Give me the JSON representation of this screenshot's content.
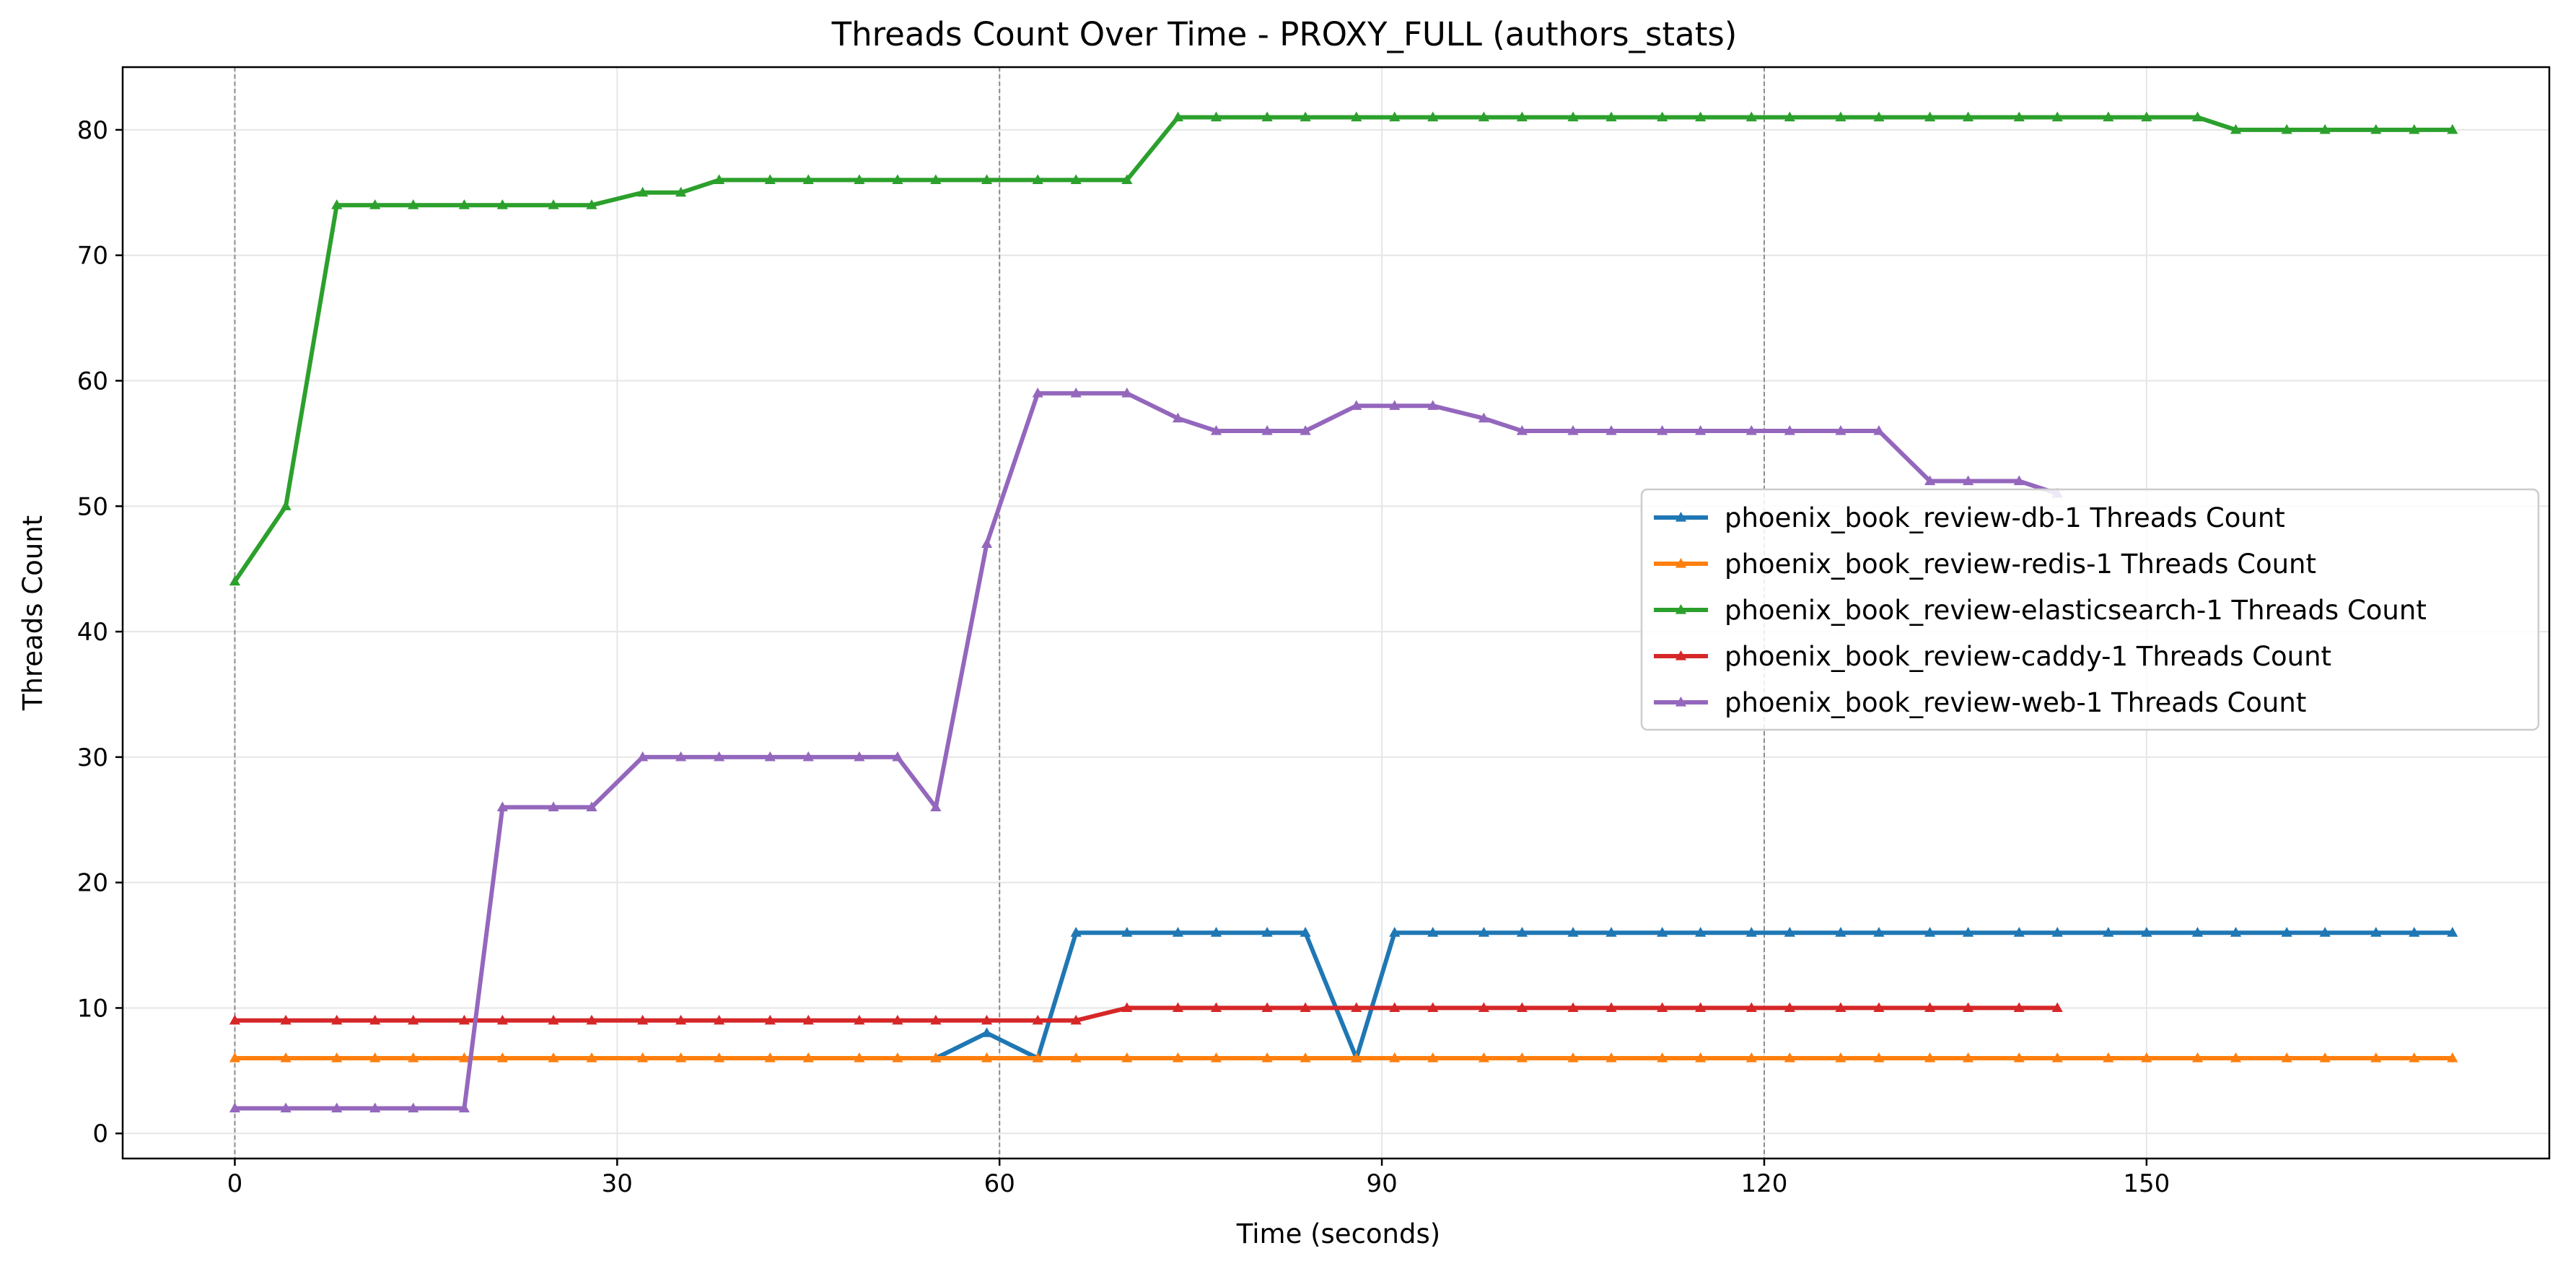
{
  "chart_data": {
    "type": "line",
    "title": "Threads Count Over Time - PROXY_FULL (authors_stats)",
    "xlabel": "Time (seconds)",
    "ylabel": "Threads Count",
    "xlim": [
      -8.8,
      181.6
    ],
    "ylim": [
      -2,
      85
    ],
    "xticks": [
      0,
      30,
      60,
      90,
      120,
      150
    ],
    "yticks": [
      0,
      10,
      20,
      30,
      40,
      50,
      60,
      70,
      80
    ],
    "vlines": [
      0,
      60,
      120
    ],
    "grid": true,
    "legend_position": "center-right",
    "series": [
      {
        "name": "phoenix_book_review-db-1 Threads Count",
        "color": "#1f77b4",
        "x": [
          55,
          59,
          63,
          66,
          70,
          74,
          77,
          81,
          84,
          88,
          91,
          94,
          98,
          101,
          105,
          108,
          112,
          115,
          119,
          122,
          126,
          129,
          133,
          136,
          140,
          143,
          147,
          150,
          154,
          157,
          161,
          164,
          168,
          171,
          174
        ],
        "y": [
          6,
          8,
          6,
          16,
          16,
          16,
          16,
          16,
          16,
          6,
          16,
          16,
          16,
          16,
          16,
          16,
          16,
          16,
          16,
          16,
          16,
          16,
          16,
          16,
          16,
          16,
          16,
          16,
          16,
          16,
          16,
          16,
          16,
          16,
          16
        ]
      },
      {
        "name": "phoenix_book_review-redis-1 Threads Count",
        "color": "#ff7f0e",
        "x": [
          0,
          4,
          8,
          11,
          14,
          18,
          21,
          25,
          28,
          32,
          35,
          38,
          42,
          45,
          49,
          52,
          55,
          59,
          63,
          66,
          70,
          74,
          77,
          81,
          84,
          88,
          91,
          94,
          98,
          101,
          105,
          108,
          112,
          115,
          119,
          122,
          126,
          129,
          133,
          136,
          140,
          143,
          147,
          150,
          154,
          157,
          161,
          164,
          168,
          171,
          174
        ],
        "y": [
          6,
          6,
          6,
          6,
          6,
          6,
          6,
          6,
          6,
          6,
          6,
          6,
          6,
          6,
          6,
          6,
          6,
          6,
          6,
          6,
          6,
          6,
          6,
          6,
          6,
          6,
          6,
          6,
          6,
          6,
          6,
          6,
          6,
          6,
          6,
          6,
          6,
          6,
          6,
          6,
          6,
          6,
          6,
          6,
          6,
          6,
          6,
          6,
          6,
          6,
          6
        ]
      },
      {
        "name": "phoenix_book_review-elasticsearch-1 Threads Count",
        "color": "#2ca02c",
        "x": [
          0,
          4,
          8,
          11,
          14,
          18,
          21,
          25,
          28,
          32,
          35,
          38,
          42,
          45,
          49,
          52,
          55,
          59,
          63,
          66,
          70,
          74,
          77,
          81,
          84,
          88,
          91,
          94,
          98,
          101,
          105,
          108,
          112,
          115,
          119,
          122,
          126,
          129,
          133,
          136,
          140,
          143,
          147,
          150,
          154,
          157,
          161,
          164,
          168,
          171,
          174
        ],
        "y": [
          44,
          50,
          74,
          74,
          74,
          74,
          74,
          74,
          74,
          75,
          75,
          76,
          76,
          76,
          76,
          76,
          76,
          76,
          76,
          76,
          76,
          81,
          81,
          81,
          81,
          81,
          81,
          81,
          81,
          81,
          81,
          81,
          81,
          81,
          81,
          81,
          81,
          81,
          81,
          81,
          81,
          81,
          81,
          81,
          81,
          80,
          80,
          80,
          80,
          80,
          80
        ]
      },
      {
        "name": "phoenix_book_review-caddy-1 Threads Count",
        "color": "#d62728",
        "x": [
          0,
          4,
          8,
          11,
          14,
          18,
          21,
          25,
          28,
          32,
          35,
          38,
          42,
          45,
          49,
          52,
          55,
          59,
          63,
          66,
          70,
          74,
          77,
          81,
          84,
          88,
          91,
          94,
          98,
          101,
          105,
          108,
          112,
          115,
          119,
          122,
          126,
          129,
          133,
          136,
          140,
          143
        ],
        "y": [
          9,
          9,
          9,
          9,
          9,
          9,
          9,
          9,
          9,
          9,
          9,
          9,
          9,
          9,
          9,
          9,
          9,
          9,
          9,
          9,
          10,
          10,
          10,
          10,
          10,
          10,
          10,
          10,
          10,
          10,
          10,
          10,
          10,
          10,
          10,
          10,
          10,
          10,
          10,
          10,
          10,
          10
        ]
      },
      {
        "name": "phoenix_book_review-web-1 Threads Count",
        "color": "#9467bd",
        "x": [
          0,
          4,
          8,
          11,
          14,
          18,
          21,
          25,
          28,
          32,
          35,
          38,
          42,
          45,
          49,
          52,
          55,
          59,
          63,
          66,
          70,
          74,
          77,
          81,
          84,
          88,
          91,
          94,
          98,
          101,
          105,
          108,
          112,
          115,
          119,
          122,
          126,
          129,
          133,
          136,
          140,
          143
        ],
        "y": [
          2,
          2,
          2,
          2,
          2,
          2,
          26,
          26,
          26,
          30,
          30,
          30,
          30,
          30,
          30,
          30,
          26,
          47,
          59,
          59,
          59,
          57,
          56,
          56,
          56,
          58,
          58,
          58,
          57,
          56,
          56,
          56,
          56,
          56,
          56,
          56,
          56,
          56,
          52,
          52,
          52,
          51
        ]
      }
    ]
  }
}
